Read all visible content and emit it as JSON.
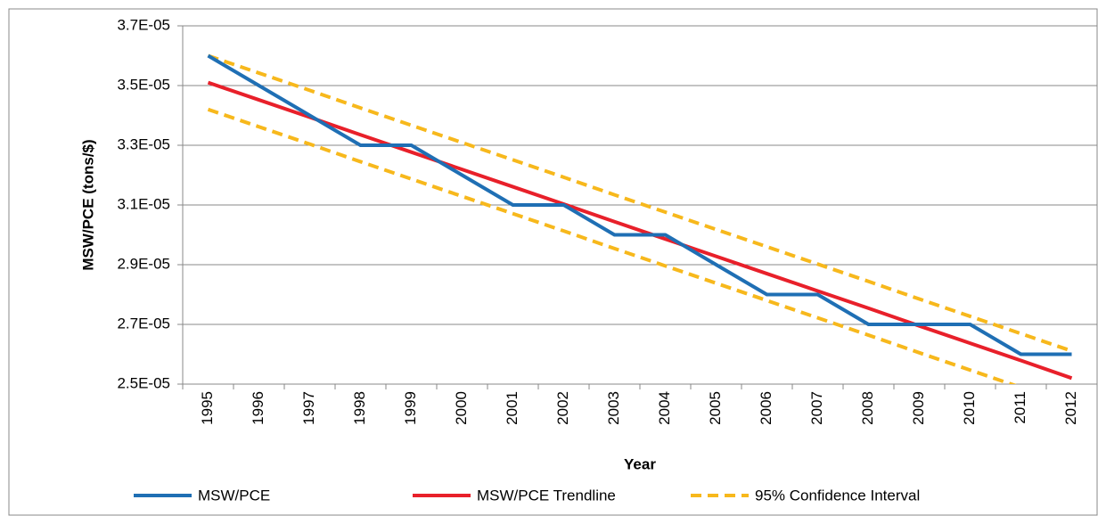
{
  "chart_data": {
    "type": "line",
    "x_label": "Year",
    "y_label": "MSW/PCE (tons/$)",
    "categories": [
      "1995",
      "1996",
      "1997",
      "1998",
      "1999",
      "2000",
      "2001",
      "2002",
      "2003",
      "2004",
      "2005",
      "2006",
      "2007",
      "2008",
      "2009",
      "2010",
      "2011",
      "2012"
    ],
    "ylim": [
      2.5e-05,
      3.7e-05
    ],
    "yticks": [
      {
        "value": 2.5e-05,
        "label": "2.5E-05"
      },
      {
        "value": 2.7e-05,
        "label": "2.7E-05"
      },
      {
        "value": 2.9e-05,
        "label": "2.9E-05"
      },
      {
        "value": 3.1e-05,
        "label": "3.1E-05"
      },
      {
        "value": 3.3e-05,
        "label": "3.3E-05"
      },
      {
        "value": 3.5e-05,
        "label": "3.5E-05"
      },
      {
        "value": 3.7e-05,
        "label": "3.7E-05"
      }
    ],
    "grid": true,
    "legend": "bottom",
    "series": [
      {
        "name": "MSW/PCE",
        "color": "#1f6fb4",
        "values": [
          3.6e-05,
          3.5e-05,
          3.4e-05,
          3.3e-05,
          3.3e-05,
          3.2e-05,
          3.1e-05,
          3.1e-05,
          3e-05,
          3e-05,
          2.9e-05,
          2.8e-05,
          2.8e-05,
          2.7e-05,
          2.7e-05,
          2.7e-05,
          2.6e-05,
          2.6e-05
        ]
      },
      {
        "name": "MSW/PCE Trendline",
        "color": "#e8202a",
        "values": [
          3.51e-05,
          3.452e-05,
          3.394e-05,
          3.335e-05,
          3.277e-05,
          3.219e-05,
          3.161e-05,
          3.103e-05,
          3.044e-05,
          2.986e-05,
          2.928e-05,
          2.87e-05,
          2.812e-05,
          2.754e-05,
          2.695e-05,
          2.637e-05,
          2.579e-05,
          2.52e-05
        ]
      },
      {
        "name": "95% Confidence Interval",
        "color": "#f7b81c",
        "dashed": true,
        "values": [
          3.6e-05,
          3.542e-05,
          3.484e-05,
          3.425e-05,
          3.367e-05,
          3.309e-05,
          3.251e-05,
          3.193e-05,
          3.134e-05,
          3.076e-05,
          3.018e-05,
          2.96e-05,
          2.902e-05,
          2.844e-05,
          2.785e-05,
          2.727e-05,
          2.669e-05,
          2.611e-05
        ],
        "lower": [
          3.42e-05,
          3.362e-05,
          3.304e-05,
          3.245e-05,
          3.187e-05,
          3.129e-05,
          3.071e-05,
          3.013e-05,
          2.954e-05,
          2.896e-05,
          2.838e-05,
          2.78e-05,
          2.722e-05,
          2.664e-05,
          2.605e-05,
          2.547e-05,
          2.489e-05,
          2.431e-05
        ]
      }
    ]
  }
}
